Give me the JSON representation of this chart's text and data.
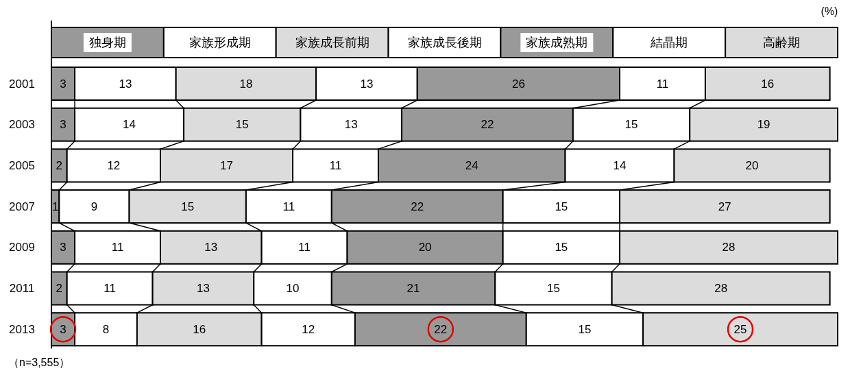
{
  "chart_data": {
    "type": "bar",
    "stacked": true,
    "orientation": "horizontal",
    "data_labels": true,
    "legend": "top",
    "categories": [
      "2001",
      "2003",
      "2005",
      "2007",
      "2009",
      "2011",
      "2013"
    ],
    "series": [
      {
        "name": "独身期",
        "color": "#999999",
        "values": [
          3,
          3,
          2,
          1,
          3,
          2,
          3
        ]
      },
      {
        "name": "家族形成期",
        "color": "#ffffff",
        "values": [
          13,
          14,
          12,
          9,
          11,
          11,
          8
        ]
      },
      {
        "name": "家族成長前期",
        "color": "#dcdcdc",
        "values": [
          18,
          15,
          17,
          15,
          13,
          13,
          16
        ]
      },
      {
        "name": "家族成長後期",
        "color": "#ffffff",
        "values": [
          13,
          13,
          11,
          11,
          11,
          10,
          12
        ]
      },
      {
        "name": "家族成熟期",
        "color": "#999999",
        "values": [
          26,
          22,
          24,
          22,
          20,
          21,
          22
        ]
      },
      {
        "name": "結晶期",
        "color": "#ffffff",
        "values": [
          11,
          15,
          14,
          15,
          15,
          15,
          15
        ]
      },
      {
        "name": "高齢期",
        "color": "#dcdcdc",
        "values": [
          16,
          19,
          20,
          27,
          28,
          28,
          25
        ]
      }
    ],
    "annotations": [
      "(%)",
      "（n=3,555）"
    ]
  }
}
